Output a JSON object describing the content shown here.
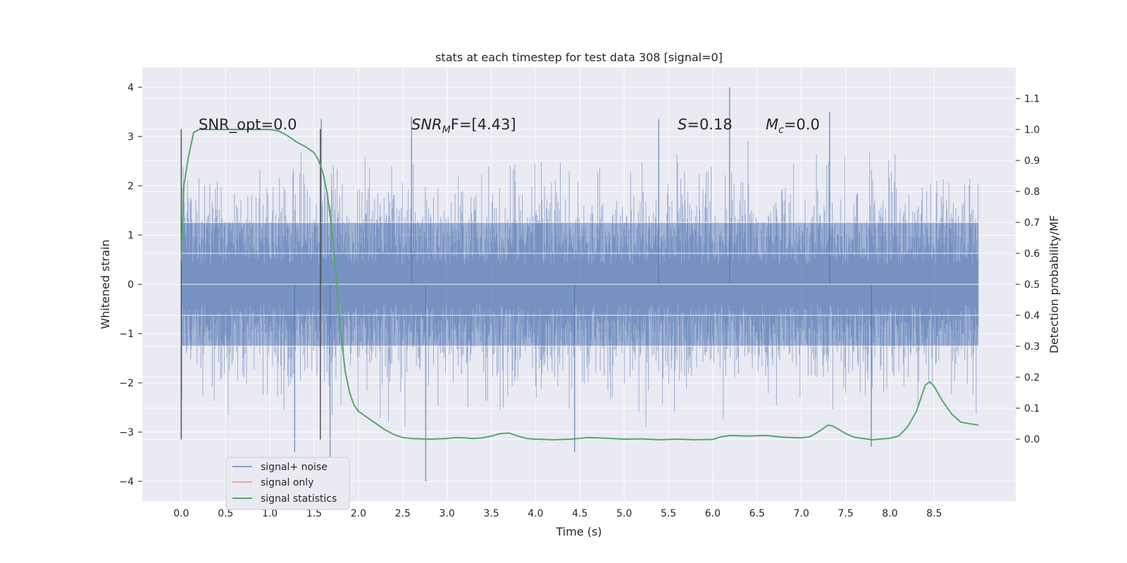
{
  "chart_data": {
    "type": "line",
    "title": "stats at each timestep for test data 308 [signal=0]",
    "xlabel": "Time (s)",
    "ylabel_left": "Whitened strain",
    "ylabel_right": "Detection probability/MF",
    "xlim": [
      -0.44,
      9.42
    ],
    "ylim_left": [
      -4.4,
      4.4
    ],
    "ylim_right": [
      -0.2,
      1.2
    ],
    "x_ticks": [
      0.0,
      0.5,
      1.0,
      1.5,
      2.0,
      2.5,
      3.0,
      3.5,
      4.0,
      4.5,
      5.0,
      5.5,
      6.0,
      6.5,
      7.0,
      7.5,
      8.0,
      8.5
    ],
    "y_ticks_left": [
      -4,
      -3,
      -2,
      -1,
      0,
      1,
      2,
      3,
      4
    ],
    "y_ticks_right": [
      0.0,
      0.1,
      0.2,
      0.3,
      0.4,
      0.5,
      0.6,
      0.7,
      0.8,
      0.9,
      1.0,
      1.1
    ],
    "grid": true,
    "legend_position": "lower-left",
    "annotations": {
      "snr_opt": "SNR_opt=0.0",
      "snr_mf_prefix": "SNR",
      "snr_mf_sub": "M",
      "snr_mf_suffix": "F=[4.43]",
      "s_prefix": "S",
      "s_suffix": "=0.18",
      "mc_prefix": "M",
      "mc_sub": "c",
      "mc_suffix": "=0.0"
    },
    "vertical_lines": [
      {
        "x": 0.0,
        "y_range": [
          -3.15,
          3.15
        ]
      },
      {
        "x": 1.57,
        "y_range": [
          -3.15,
          3.15
        ]
      }
    ],
    "series": [
      {
        "name": "signal+ noise",
        "axis": "left",
        "color": "#4c72b0",
        "style": "noise",
        "x_range": [
          0.0,
          9.0
        ],
        "band_std": 0.85,
        "notable_spikes": [
          {
            "x": 2.76,
            "y": -4.0
          },
          {
            "x": 6.19,
            "y": 4.0
          },
          {
            "x": 1.68,
            "y": -3.5
          },
          {
            "x": 7.32,
            "y": 3.5
          },
          {
            "x": 1.58,
            "y": 3.35
          },
          {
            "x": 2.6,
            "y": 3.4
          },
          {
            "x": 5.39,
            "y": 3.35
          },
          {
            "x": 4.44,
            "y": -3.4
          },
          {
            "x": 1.28,
            "y": -3.4
          },
          {
            "x": 7.79,
            "y": -3.3
          }
        ]
      },
      {
        "name": "signal only",
        "axis": "left",
        "color": "#dd8452",
        "style": "line",
        "x": [],
        "y": []
      },
      {
        "name": "signal statistics",
        "axis": "right",
        "color": "#55a868",
        "style": "line",
        "x": [
          0.0,
          0.03,
          0.08,
          0.14,
          0.2,
          0.3,
          0.5,
          0.8,
          1.0,
          1.1,
          1.2,
          1.3,
          1.4,
          1.5,
          1.55,
          1.6,
          1.65,
          1.7,
          1.75,
          1.8,
          1.85,
          1.9,
          1.95,
          2.0,
          2.1,
          2.2,
          2.3,
          2.4,
          2.5,
          2.6,
          2.8,
          3.0,
          3.1,
          3.2,
          3.3,
          3.4,
          3.5,
          3.6,
          3.7,
          3.8,
          3.9,
          4.0,
          4.2,
          4.4,
          4.6,
          4.8,
          5.0,
          5.2,
          5.4,
          5.6,
          5.8,
          6.0,
          6.1,
          6.2,
          6.4,
          6.6,
          6.8,
          7.0,
          7.1,
          7.2,
          7.3,
          7.35,
          7.4,
          7.5,
          7.6,
          7.8,
          8.0,
          8.1,
          8.2,
          8.3,
          8.4,
          8.45,
          8.5,
          8.6,
          8.7,
          8.8,
          9.0
        ],
        "y": [
          0.57,
          0.82,
          0.91,
          0.99,
          1.0,
          1.0,
          1.0,
          1.0,
          1.0,
          0.995,
          0.98,
          0.96,
          0.945,
          0.925,
          0.9,
          0.86,
          0.79,
          0.68,
          0.52,
          0.35,
          0.22,
          0.15,
          0.11,
          0.09,
          0.07,
          0.05,
          0.03,
          0.015,
          0.005,
          0.002,
          0.0,
          0.002,
          0.005,
          0.004,
          0.002,
          0.004,
          0.01,
          0.018,
          0.02,
          0.01,
          0.002,
          0.0,
          -0.002,
          0.0,
          0.005,
          0.003,
          0.0,
          0.001,
          -0.002,
          0.0,
          -0.002,
          -0.001,
          0.008,
          0.012,
          0.01,
          0.012,
          0.006,
          0.004,
          0.008,
          0.025,
          0.045,
          0.043,
          0.035,
          0.018,
          0.006,
          -0.002,
          0.003,
          0.01,
          0.04,
          0.09,
          0.175,
          0.185,
          0.17,
          0.12,
          0.08,
          0.055,
          0.045
        ]
      }
    ]
  }
}
